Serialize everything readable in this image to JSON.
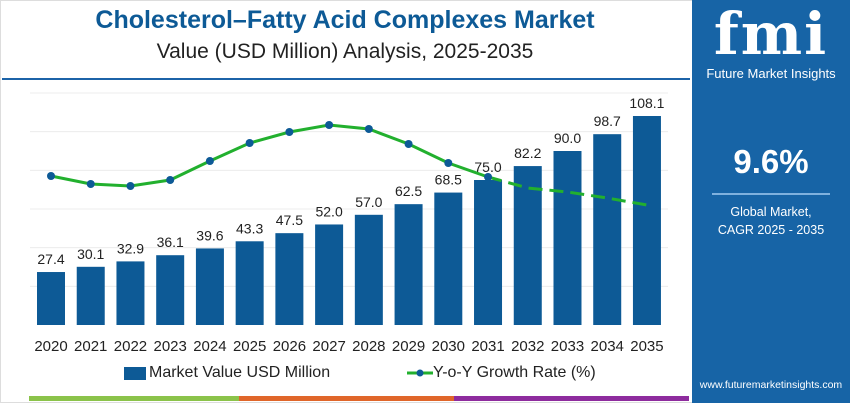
{
  "title": "Cholesterol–Fatty Acid Complexes Market",
  "subtitle": "Value (USD Million) Analysis, 2025-2035",
  "sidebar": {
    "logo_text": "fmi",
    "brand": "Future Market Insights",
    "cagr": "9.6%",
    "cagr_label_1": "Global Market,",
    "cagr_label_2": "CAGR 2025 - 2035",
    "url": "www.futuremarketinsights.com"
  },
  "colors": {
    "bar": "#0d5a96",
    "line": "#22b02e",
    "marker": "#0d5a96",
    "sidebar": "#1764a6",
    "strip": [
      "#8bc34a",
      "#e0662a",
      "#8e2c9e"
    ]
  },
  "chart_data": {
    "type": "bar+line",
    "categories": [
      "2020",
      "2021",
      "2022",
      "2023",
      "2024",
      "2025",
      "2026",
      "2027",
      "2028",
      "2029",
      "2030",
      "2031",
      "2032",
      "2033",
      "2034",
      "2035"
    ],
    "series": [
      {
        "name": "Market Value USD Million",
        "type": "bar",
        "values": [
          27.4,
          30.1,
          32.9,
          36.1,
          39.6,
          43.3,
          47.5,
          52.0,
          57.0,
          62.5,
          68.5,
          75.0,
          82.2,
          90.0,
          98.7,
          108.1
        ],
        "labels": [
          "27.4",
          "30.1",
          "32.9",
          "36.1",
          "39.6",
          "43.3",
          "47.5",
          "52.0",
          "57.0",
          "62.5",
          "68.5",
          "75.0",
          "82.2",
          "90.0",
          "98.7",
          "108.1"
        ]
      },
      {
        "name": "Y-o-Y Growth Rate (%)",
        "type": "line",
        "values": [
          9.6,
          9.44,
          9.4,
          9.52,
          9.9,
          10.26,
          10.48,
          10.62,
          10.54,
          10.24,
          9.86,
          9.58,
          9.36,
          9.28,
          9.16,
          9.02
        ],
        "dashed_from": "2031"
      }
    ],
    "ylim": [
      0,
      120
    ],
    "grid": true,
    "legend": "bottom"
  }
}
